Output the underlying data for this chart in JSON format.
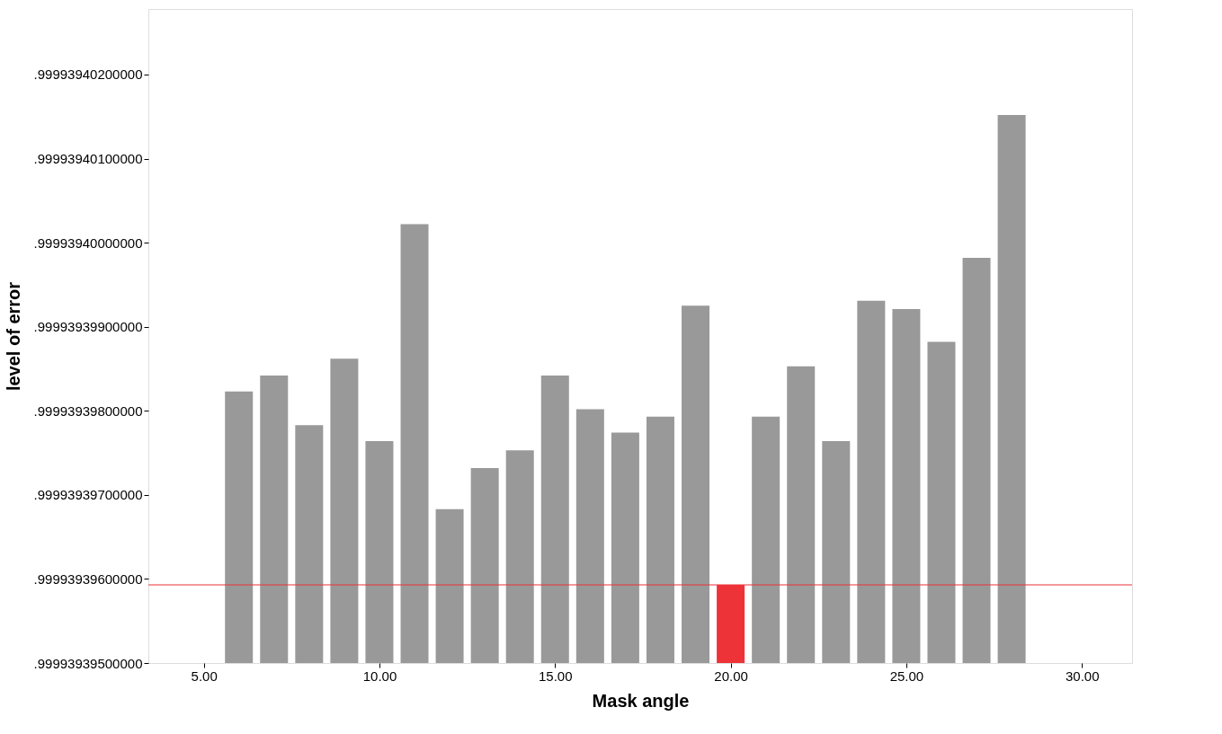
{
  "chart_data": {
    "type": "bar",
    "xlabel": "Mask angle",
    "ylabel": "level of error",
    "x": [
      6,
      7,
      8,
      9,
      10,
      11,
      12,
      13,
      14,
      15,
      16,
      17,
      18,
      19,
      20,
      21,
      22,
      23,
      24,
      25,
      26,
      27,
      28
    ],
    "values": [
      0.99993939823,
      0.99993939842,
      0.99993939783,
      0.99993939862,
      0.99993939764,
      0.99993940022,
      0.99993939683,
      0.99993939732,
      0.99993939753,
      0.99993939842,
      0.99993939802,
      0.99993939774,
      0.99993939793,
      0.99993939925,
      0.99993939593,
      0.99993939793,
      0.99993939853,
      0.99993939764,
      0.99993939931,
      0.99993939921,
      0.99993939882,
      0.99993939982,
      0.99993940152
    ],
    "colors": [
      "#999999",
      "#999999",
      "#999999",
      "#999999",
      "#999999",
      "#999999",
      "#999999",
      "#999999",
      "#999999",
      "#999999",
      "#999999",
      "#999999",
      "#999999",
      "#999999",
      "#ee3338",
      "#999999",
      "#999999",
      "#999999",
      "#999999",
      "#999999",
      "#999999",
      "#999999",
      "#999999"
    ],
    "xlim": [
      3.55,
      31.3
    ],
    "xticks": [
      {
        "value": 5,
        "label": "5.00"
      },
      {
        "value": 10,
        "label": "10.00"
      },
      {
        "value": 15,
        "label": "15.00"
      },
      {
        "value": 20,
        "label": "20.00"
      },
      {
        "value": 25,
        "label": "25.00"
      },
      {
        "value": 30,
        "label": "30.00"
      }
    ],
    "ylim": [
      0.999939395,
      0.99993940278
    ],
    "yticks": [
      {
        "value": 0.999939395,
        "label": ".99993939500000"
      },
      {
        "value": 0.999939396,
        "label": ".99993939600000"
      },
      {
        "value": 0.999939397,
        "label": ".99993939700000"
      },
      {
        "value": 0.999939398,
        "label": ".99993939800000"
      },
      {
        "value": 0.999939399,
        "label": ".99993939900000"
      },
      {
        "value": 0.9999394,
        "label": ".99993940000000"
      },
      {
        "value": 0.999939401,
        "label": ".99993940100000"
      },
      {
        "value": 0.999939402,
        "label": ".99993940200000"
      }
    ],
    "ref_lines": [
      {
        "axis": "y",
        "value": 0.99993939593,
        "color": "#ee3338"
      }
    ],
    "grid": false,
    "legend": false
  }
}
